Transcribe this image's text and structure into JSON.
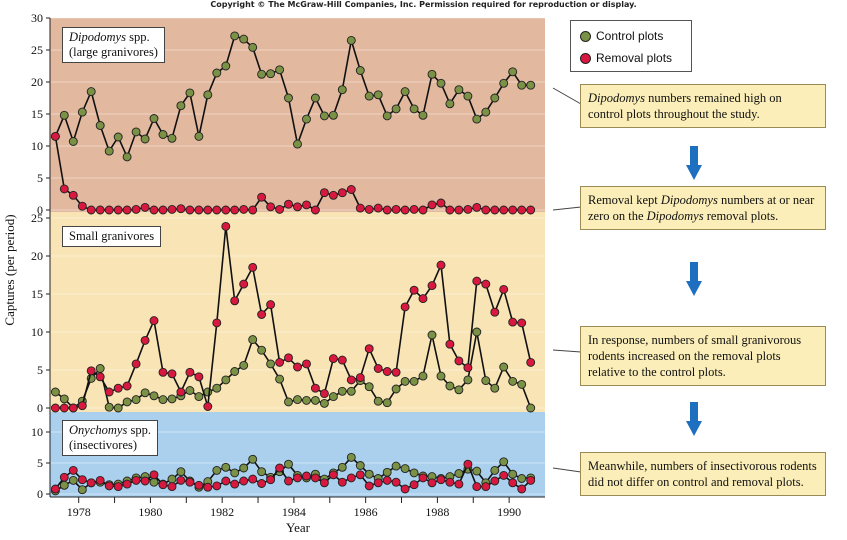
{
  "copyright": "Copyright © The McGraw-Hill Companies, Inc. Permission required for reproduction or display.",
  "colors": {
    "panel_top": "#e2b89e",
    "panel_mid": "#f8e4b4",
    "panel_bottom": "#aad0ee",
    "control": "#7a9146",
    "removal": "#d9183f",
    "note_bg": "#fbeeb8",
    "arrow": "#1f6fc0"
  },
  "legend": [
    {
      "label": "Control plots",
      "color": "#7a9146"
    },
    {
      "label": "Removal plots",
      "color": "#d9183f"
    }
  ],
  "notes": [
    {
      "pre": "",
      "em1": "Dipodomys",
      "mid": " numbers remained high on control plots throughout the study.",
      "em2": "",
      "post": ""
    },
    {
      "pre": "Removal kept ",
      "em1": "Dipodomys",
      "mid": " numbers at or near zero on the ",
      "em2": "Dipodomys",
      "post": " removal plots."
    },
    {
      "pre": "In response, numbers of small granivorous rodents increased on the removal plots relative to the control plots.",
      "em1": "",
      "mid": "",
      "em2": "",
      "post": ""
    },
    {
      "pre": "Meanwhile, numbers of insectivorous rodents did not differ on control and removal plots.",
      "em1": "",
      "mid": "",
      "em2": "",
      "post": ""
    }
  ],
  "panel_labels": [
    {
      "em": "Dipodomys",
      "rest": " spp.",
      "line2": "(large granivores)"
    },
    {
      "em": "",
      "rest": "Small granivores",
      "line2": ""
    },
    {
      "em": "Onychomys",
      "rest": " spp.",
      "line2": "(insectivores)"
    }
  ],
  "chart_data": {
    "type": "line",
    "xlabel": "Year",
    "ylabel": "Captures (per period)",
    "x_ticks": [
      "1978",
      "1980",
      "1982",
      "1984",
      "1986",
      "1988",
      "1990"
    ],
    "xlim": [
      1977.2,
      1991.0
    ],
    "panels": [
      {
        "name": "Dipodomys spp. (large granivores)",
        "ylim": [
          0,
          30
        ],
        "y_ticks": [
          "0",
          "5",
          "10",
          "15",
          "20",
          "25",
          "30"
        ],
        "series": [
          {
            "name": "Control plots",
            "x": [
              1977.35,
              1977.6,
              1977.85,
              1978.1,
              1978.35,
              1978.6,
              1978.85,
              1979.1,
              1979.35,
              1979.6,
              1979.85,
              1980.1,
              1980.35,
              1980.6,
              1980.85,
              1981.1,
              1981.35,
              1981.6,
              1981.85,
              1982.1,
              1982.35,
              1982.6,
              1982.85,
              1983.1,
              1983.35,
              1983.6,
              1983.85,
              1984.1,
              1984.35,
              1984.6,
              1984.85,
              1985.1,
              1985.35,
              1985.6,
              1985.85,
              1986.1,
              1986.35,
              1986.6,
              1986.85,
              1987.1,
              1987.35,
              1987.6,
              1987.85,
              1988.1,
              1988.35,
              1988.6,
              1988.85,
              1989.1,
              1989.35,
              1989.6,
              1989.85,
              1990.1,
              1990.35,
              1990.6
            ],
            "values": [
              11.5,
              14.8,
              10.7,
              15.3,
              18.5,
              13.2,
              9.2,
              11.4,
              8.3,
              12.2,
              11.1,
              14.3,
              11.8,
              11.2,
              16.3,
              18.3,
              11.5,
              18,
              21.4,
              22.5,
              27.2,
              26.7,
              25.4,
              21.2,
              21.3,
              21.9,
              17.5,
              10.3,
              14.2,
              17.5,
              14.7,
              14.8,
              18.8,
              26.5,
              21.8,
              17.8,
              18,
              14.7,
              15.8,
              18.5,
              15.8,
              14.8,
              21.2,
              19.8,
              16.6,
              18.8,
              17.8,
              14.2,
              15.3,
              17.5,
              19.8,
              21.6,
              19.5,
              19.5
            ]
          },
          {
            "name": "Removal plots",
            "x": [
              1977.35,
              1977.6,
              1977.85,
              1978.1,
              1978.35,
              1978.6,
              1978.85,
              1979.1,
              1979.35,
              1979.6,
              1979.85,
              1980.1,
              1980.35,
              1980.6,
              1980.85,
              1981.1,
              1981.35,
              1981.6,
              1981.85,
              1982.1,
              1982.35,
              1982.6,
              1982.85,
              1983.1,
              1983.35,
              1983.6,
              1983.85,
              1984.1,
              1984.35,
              1984.6,
              1984.85,
              1985.1,
              1985.35,
              1985.6,
              1985.85,
              1986.1,
              1986.35,
              1986.6,
              1986.85,
              1987.1,
              1987.35,
              1987.6,
              1987.85,
              1988.1,
              1988.35,
              1988.6,
              1988.85,
              1989.1,
              1989.35,
              1989.6,
              1989.85,
              1990.1,
              1990.35,
              1990.6
            ],
            "values": [
              11.5,
              3.3,
              2.3,
              0.6,
              0,
              0,
              0,
              0,
              0,
              0.1,
              0.4,
              0,
              0,
              0.1,
              0.2,
              0,
              0,
              0,
              0,
              0,
              0,
              0.1,
              0,
              2,
              0.5,
              0.1,
              0.9,
              0.5,
              0.8,
              0,
              2.7,
              2.3,
              2.7,
              3.2,
              0.3,
              0.1,
              0.3,
              0,
              0.1,
              0,
              0.1,
              0,
              0.8,
              1.1,
              0,
              0,
              0.1,
              0.4,
              0,
              0,
              0,
              0,
              0,
              0
            ]
          }
        ]
      },
      {
        "name": "Small granivores",
        "ylim": [
          0,
          25
        ],
        "y_ticks": [
          "0",
          "5",
          "10",
          "15",
          "20",
          "25"
        ],
        "series": [
          {
            "name": "Control plots",
            "x": [
              1977.35,
              1977.6,
              1977.85,
              1978.1,
              1978.35,
              1978.6,
              1978.85,
              1979.1,
              1979.35,
              1979.6,
              1979.85,
              1980.1,
              1980.35,
              1980.6,
              1980.85,
              1981.1,
              1981.35,
              1981.6,
              1981.85,
              1982.1,
              1982.35,
              1982.6,
              1982.85,
              1983.1,
              1983.35,
              1983.6,
              1983.85,
              1984.1,
              1984.35,
              1984.6,
              1984.85,
              1985.1,
              1985.35,
              1985.6,
              1985.85,
              1986.1,
              1986.35,
              1986.6,
              1986.85,
              1987.1,
              1987.35,
              1987.6,
              1987.85,
              1988.1,
              1988.35,
              1988.6,
              1988.85,
              1989.1,
              1989.35,
              1989.6,
              1989.85,
              1990.1,
              1990.35,
              1990.6
            ],
            "values": [
              2.1,
              1.2,
              0,
              0.9,
              3.9,
              5.2,
              0.1,
              0,
              0.8,
              1.1,
              2,
              1.6,
              1.1,
              1.2,
              1.6,
              2.3,
              1.5,
              2.1,
              2.6,
              3.7,
              4.8,
              5.6,
              9,
              7.6,
              5.8,
              3.8,
              0.8,
              1.1,
              1,
              1,
              0.6,
              1.5,
              2.2,
              2.2,
              3.6,
              2.8,
              0.9,
              0.7,
              2.5,
              3.5,
              3.5,
              4.2,
              9.6,
              4.2,
              2.9,
              2.4,
              3.7,
              10,
              3.6,
              2.6,
              5.4,
              3.5,
              3.1,
              0
            ]
          },
          {
            "name": "Removal plots",
            "x": [
              1977.35,
              1977.6,
              1977.85,
              1978.1,
              1978.35,
              1978.6,
              1978.85,
              1979.1,
              1979.35,
              1979.6,
              1979.85,
              1980.1,
              1980.35,
              1980.6,
              1980.85,
              1981.1,
              1981.35,
              1981.6,
              1981.85,
              1982.1,
              1982.35,
              1982.6,
              1982.85,
              1983.1,
              1983.35,
              1983.6,
              1983.85,
              1984.1,
              1984.35,
              1984.6,
              1984.85,
              1985.1,
              1985.35,
              1985.6,
              1985.85,
              1986.1,
              1986.35,
              1986.6,
              1986.85,
              1987.1,
              1987.35,
              1987.6,
              1987.85,
              1988.1,
              1988.35,
              1988.6,
              1988.85,
              1989.1,
              1989.35,
              1989.6,
              1989.85,
              1990.1,
              1990.35,
              1990.6
            ],
            "values": [
              0,
              0,
              0,
              0.3,
              4.9,
              4.1,
              2.1,
              2.6,
              2.9,
              5.8,
              8.9,
              11.5,
              4.7,
              4.5,
              2.1,
              4.7,
              4.1,
              0.2,
              11.2,
              23.9,
              14.1,
              16.3,
              18.5,
              12.3,
              13.6,
              6,
              6.6,
              5.4,
              5.8,
              2.6,
              1.9,
              6.5,
              6.3,
              3.7,
              4,
              7.8,
              5.2,
              4.8,
              4.7,
              13.3,
              15.5,
              14.4,
              16.1,
              18.8,
              8.4,
              6.2,
              5.3,
              16.7,
              16.3,
              12.6,
              15.6,
              11.3,
              11.2,
              6
            ]
          }
        ]
      },
      {
        "name": "Onychomys spp. (insectivores)",
        "ylim": [
          0,
          10
        ],
        "y_ticks": [
          "0",
          "5",
          "10"
        ],
        "series": [
          {
            "name": "Control plots",
            "x": [
              1977.35,
              1977.6,
              1977.85,
              1978.1,
              1978.35,
              1978.6,
              1978.85,
              1979.1,
              1979.35,
              1979.6,
              1979.85,
              1980.1,
              1980.35,
              1980.6,
              1980.85,
              1981.1,
              1981.35,
              1981.6,
              1981.85,
              1982.1,
              1982.35,
              1982.6,
              1982.85,
              1983.1,
              1983.35,
              1983.6,
              1983.85,
              1984.1,
              1984.35,
              1984.6,
              1984.85,
              1985.1,
              1985.35,
              1985.6,
              1985.85,
              1986.1,
              1986.35,
              1986.6,
              1986.85,
              1987.1,
              1987.35,
              1987.6,
              1987.85,
              1988.1,
              1988.35,
              1988.6,
              1988.85,
              1989.1,
              1989.35,
              1989.6,
              1989.85,
              1990.1,
              1990.35,
              1990.6
            ],
            "values": [
              0.5,
              1.4,
              2.2,
              0.7,
              1.8,
              1.9,
              1.5,
              1.6,
              2.1,
              2.6,
              2.8,
              1.9,
              1.6,
              2.4,
              3.6,
              2.1,
              1.1,
              2,
              3.8,
              4.3,
              3.4,
              4.2,
              5.6,
              3.6,
              2.7,
              3.6,
              4.8,
              3,
              2.6,
              3.2,
              2.4,
              3.4,
              4.3,
              5.9,
              4.6,
              3.2,
              2.5,
              3.5,
              4.5,
              4.1,
              3.4,
              2.9,
              2.8,
              2.5,
              2.8,
              3.3,
              4,
              3.7,
              1.8,
              3.8,
              5.2,
              3.2,
              2.5,
              2.6
            ]
          },
          {
            "name": "Removal plots",
            "x": [
              1977.35,
              1977.6,
              1977.85,
              1978.1,
              1978.35,
              1978.6,
              1978.85,
              1979.1,
              1979.35,
              1979.6,
              1979.85,
              1980.1,
              1980.35,
              1980.6,
              1980.85,
              1981.1,
              1981.35,
              1981.6,
              1981.85,
              1982.1,
              1982.35,
              1982.6,
              1982.85,
              1983.1,
              1983.35,
              1983.6,
              1983.85,
              1984.1,
              1984.35,
              1984.6,
              1984.85,
              1985.1,
              1985.35,
              1985.6,
              1985.85,
              1986.1,
              1986.35,
              1986.6,
              1986.85,
              1987.1,
              1987.35,
              1987.6,
              1987.85,
              1988.1,
              1988.35,
              1988.6,
              1988.85,
              1989.1,
              1989.35,
              1989.6,
              1989.85,
              1990.1,
              1990.35,
              1990.6
            ],
            "values": [
              0.8,
              2.7,
              3.8,
              2.3,
              1.8,
              2.2,
              1.3,
              1.2,
              1.6,
              2.2,
              2.1,
              3.1,
              1.5,
              1.2,
              2.2,
              1.9,
              1.4,
              1.1,
              1.3,
              2.1,
              1.6,
              2.1,
              2.4,
              1.7,
              2.3,
              4.2,
              2.1,
              2.6,
              2.9,
              2.6,
              1.8,
              3.1,
              1.9,
              2.6,
              3.1,
              1.3,
              1.8,
              2.2,
              1.9,
              0.8,
              1.5,
              2.6,
              1.8,
              2.3,
              1.9,
              1.6,
              4.8,
              1.2,
              1.2,
              2.1,
              3,
              1.8,
              0.8,
              2.2
            ]
          }
        ]
      }
    ]
  }
}
